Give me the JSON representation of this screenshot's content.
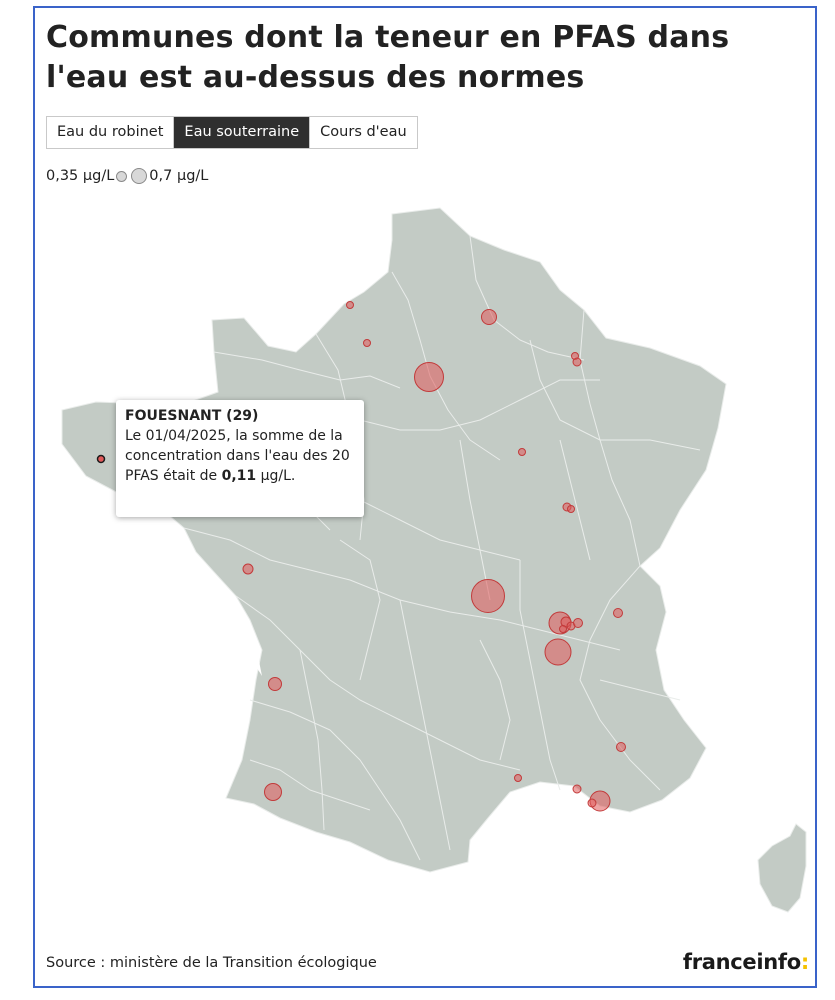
{
  "title": "Communes dont la teneur en PFAS dans l'eau est au-dessus des normes",
  "tabs": [
    {
      "label": "Eau du robinet",
      "active": false
    },
    {
      "label": "Eau souterraine",
      "active": true
    },
    {
      "label": "Cours d'eau",
      "active": false
    }
  ],
  "legend": {
    "small_label": "0,35 µg/L",
    "large_label": "0,7 µg/L"
  },
  "tooltip": {
    "title": "FOUESNANT (29)",
    "body_before": "Le 01/04/2025, la somme de la concentration dans l'eau des 20 PFAS était de ",
    "value": "0,11",
    "body_after": " µg/L."
  },
  "source": "Source : ministère de la Transition écologique",
  "logo": {
    "text": "franceinfo",
    "suffix": ":"
  },
  "colors": {
    "land": "#c3cbc5",
    "border": "#e9ecea",
    "marker_fill": "#e05a5a",
    "marker_stroke": "#c23a3a",
    "active_tab": "#2f2f2f",
    "frame": "#3a63c9",
    "logo_accent": "#f5c200"
  },
  "map": {
    "features": [
      "france-mainland",
      "corsica",
      "department-borders"
    ],
    "icons": [
      "measurement-marker",
      "selected-marker"
    ]
  }
}
